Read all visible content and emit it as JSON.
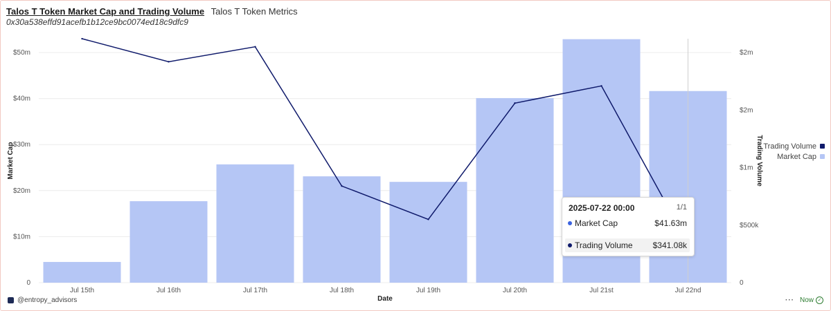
{
  "header": {
    "title": "Talos T Token Market Cap and Trading Volume",
    "subtitle": "Talos T Token Metrics",
    "address": "0x30a538effd91acefb1b12ce9bc0074ed18c9dfc9"
  },
  "legend": {
    "items": [
      {
        "label": "Trading Volume",
        "color": "#0f1a6b"
      },
      {
        "label": "Market Cap",
        "color": "#b5c6f5"
      }
    ]
  },
  "tooltip": {
    "date": "2025-07-22 00:00",
    "page": "1/1",
    "rows": [
      {
        "label": "Market Cap",
        "value": "$41.63m",
        "dot_color": "#3b63e0"
      },
      {
        "label": "Trading Volume",
        "value": "$341.08k",
        "dot_color": "#0f1a6b"
      }
    ]
  },
  "footer": {
    "handle": "@entropy_advisors",
    "more": "···",
    "status": "Now"
  },
  "chart_data": {
    "type": "bar",
    "categories": [
      "Jul 15th",
      "Jul 16th",
      "Jul 17th",
      "Jul 18th",
      "Jul 19th",
      "Jul 20th",
      "Jul 21st",
      "Jul 22nd"
    ],
    "series": [
      {
        "name": "Market Cap",
        "type": "bar",
        "axis": "left",
        "color": "#b5c6f5",
        "values": [
          4.5,
          17.7,
          25.7,
          23.1,
          21.9,
          40.1,
          52.9,
          41.63
        ]
      },
      {
        "name": "Trading Volume",
        "type": "line",
        "axis": "right",
        "color": "#0f1a6b",
        "values": [
          2.12,
          1.92,
          2.05,
          0.84,
          0.55,
          1.56,
          1.71,
          0.341
        ]
      }
    ],
    "xlabel": "Date",
    "ylabel": "Market Cap",
    "ylabel_right": "Trading Volume",
    "ylim": [
      0,
      50
    ],
    "ylim_right": [
      0,
      2
    ],
    "yticks": [
      {
        "value": 0,
        "label": "0"
      },
      {
        "value": 10,
        "label": "$10m"
      },
      {
        "value": 20,
        "label": "$20m"
      },
      {
        "value": 30,
        "label": "$30m"
      },
      {
        "value": 40,
        "label": "$40m"
      },
      {
        "value": 50,
        "label": "$50m"
      }
    ],
    "yticks_right": [
      {
        "value": 0,
        "label": "0"
      },
      {
        "value": 0.5,
        "label": "$500k"
      },
      {
        "value": 1,
        "label": "$1m"
      },
      {
        "value": 1.5,
        "label": "$2m"
      },
      {
        "value": 2,
        "label": "$2m"
      }
    ],
    "grid": true,
    "legend_position": "right"
  }
}
